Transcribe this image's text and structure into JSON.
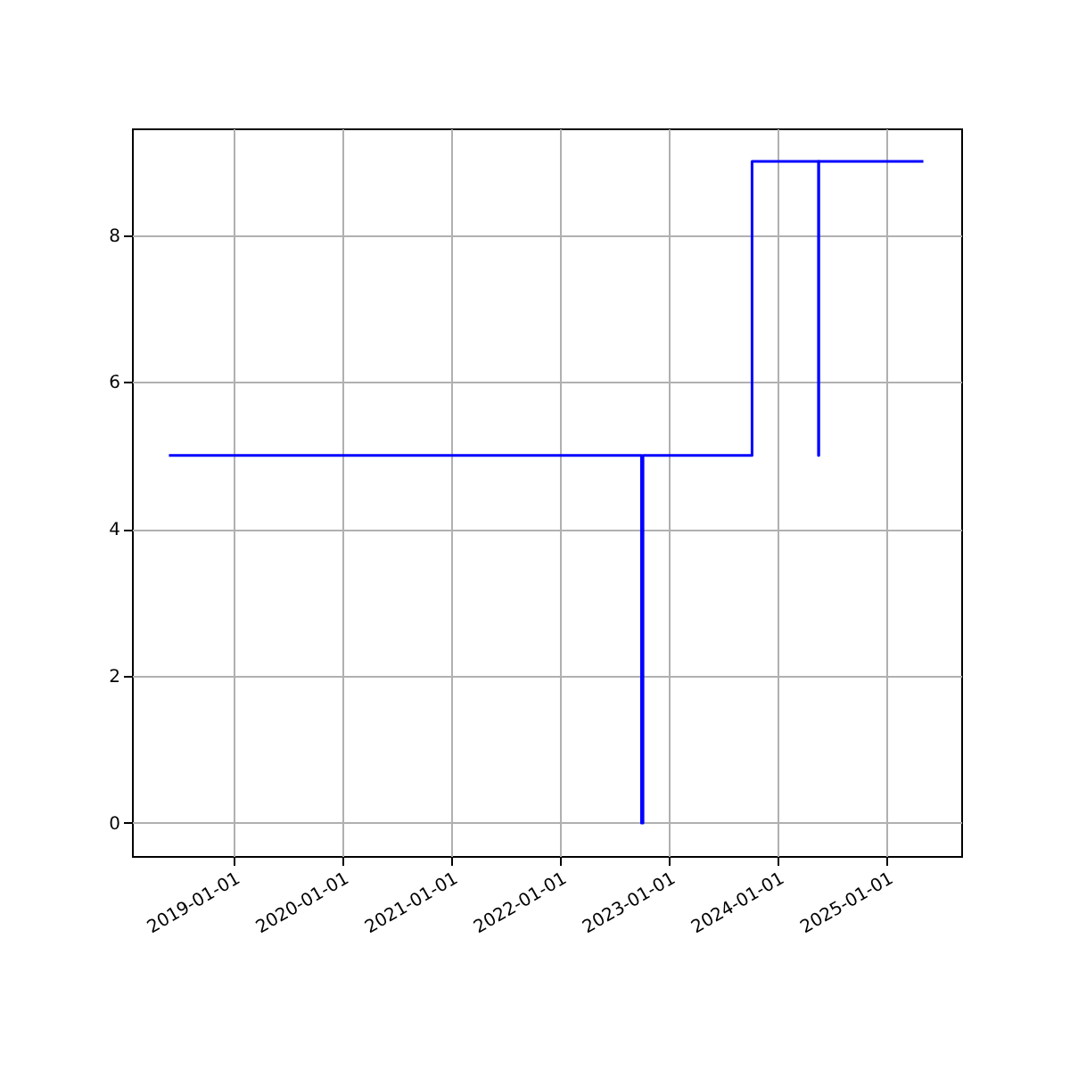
{
  "chart_data": {
    "type": "step",
    "x": [
      "2018-05-30",
      "2022-10-02",
      "2022-10-07",
      "2023-10-08",
      "2024-05-18",
      "2024-05-19",
      "2025-05-05"
    ],
    "series": [
      {
        "color": "#0000ff",
        "values": [
          5,
          0,
          5,
          9,
          5,
          9,
          9
        ]
      }
    ],
    "xlim": [
      "2018-01-26",
      "2025-09-09"
    ],
    "xticks": [
      "2019-01-01",
      "2020-01-01",
      "2021-01-01",
      "2022-01-01",
      "2023-01-01",
      "2024-01-01",
      "2025-01-01"
    ],
    "ylim": [
      -0.45,
      9.45
    ],
    "yticks": [
      0,
      2,
      4,
      6,
      8
    ],
    "grid": true,
    "marker": "none",
    "line_style": "solid"
  }
}
